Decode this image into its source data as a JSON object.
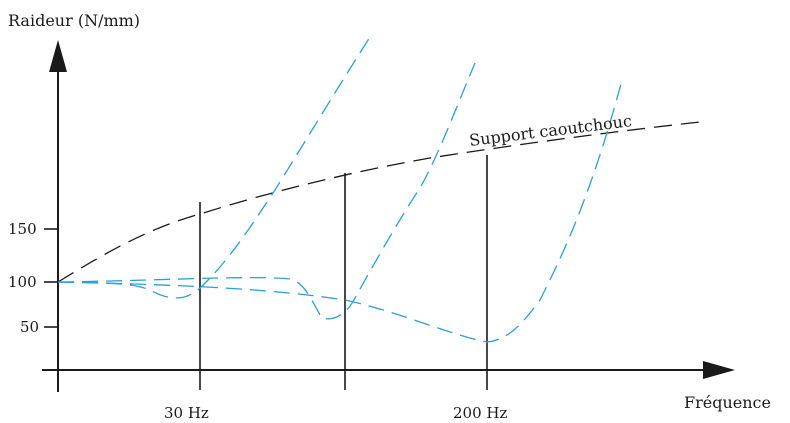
{
  "chart_data": {
    "type": "line",
    "ylabel": "Raideur (N/mm)",
    "xlabel": "Fréquence",
    "y_ticks": [
      "150",
      "100",
      "50"
    ],
    "x_ticks": [
      "30 Hz",
      "200 Hz"
    ],
    "ylim": [
      0,
      250
    ],
    "xlim": [
      0,
      250
    ],
    "series": [
      {
        "name": "Support caoutchouc",
        "color": "#1a1a1a",
        "points": [
          [
            0,
            100
          ],
          [
            30,
            130
          ],
          [
            60,
            152
          ],
          [
            100,
            168
          ],
          [
            150,
            183
          ],
          [
            200,
            195
          ],
          [
            250,
            212
          ]
        ]
      },
      {
        "name": "",
        "color": "#2b9fd6",
        "points": [
          [
            0,
            100
          ],
          [
            12,
            100
          ],
          [
            20,
            94
          ],
          [
            27,
            96
          ],
          [
            35,
            115
          ],
          [
            45,
            140
          ],
          [
            55,
            178
          ],
          [
            65,
            225
          ],
          [
            72,
            272
          ]
        ]
      },
      {
        "name": "",
        "color": "#2b9fd6",
        "points": [
          [
            0,
            100
          ],
          [
            30,
            100
          ],
          [
            50,
            101
          ],
          [
            60,
            100
          ],
          [
            75,
            81
          ],
          [
            84,
            73
          ],
          [
            92,
            81
          ],
          [
            100,
            100
          ],
          [
            110,
            150
          ],
          [
            120,
            200
          ],
          [
            130,
            262
          ]
        ]
      },
      {
        "name": "",
        "color": "#2b9fd6",
        "points": [
          [
            0,
            100
          ],
          [
            50,
            99
          ],
          [
            80,
            90
          ],
          [
            100,
            80
          ],
          [
            120,
            70
          ],
          [
            140,
            60
          ],
          [
            160,
            55
          ],
          [
            175,
            58
          ],
          [
            185,
            70
          ],
          [
            195,
            98
          ],
          [
            210,
            165
          ],
          [
            220,
            212
          ],
          [
            230,
            245
          ]
        ]
      }
    ],
    "vertical_markers": [
      {
        "x": 30,
        "label": "30 Hz"
      },
      {
        "x": 100,
        "label": ""
      },
      {
        "x": 200,
        "label": "200 Hz"
      }
    ],
    "annotations": [
      "Support caoutchouc"
    ]
  }
}
